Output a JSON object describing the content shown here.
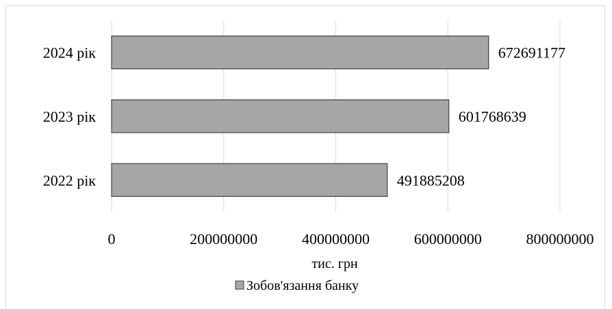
{
  "chart_data": {
    "type": "bar",
    "orientation": "horizontal",
    "categories": [
      "2022 рік",
      "2023 рік",
      "2024 рік"
    ],
    "series": [
      {
        "name": "Зобов'язання банку",
        "values": [
          491885208,
          601768639,
          672691177
        ]
      }
    ],
    "data_labels": [
      "491885208",
      "601768639",
      "672691177"
    ],
    "xlabel": "тис. грн",
    "xlim": [
      0,
      800000000
    ],
    "x_ticks": [
      0,
      200000000,
      400000000,
      600000000,
      800000000
    ],
    "x_tick_labels": [
      "0",
      "200000000",
      "400000000",
      "600000000",
      "800000000"
    ],
    "grid": "vertical",
    "legend": "bottom",
    "colors": {
      "bar_fill": "#a6a6a6",
      "bar_stroke": "#404040",
      "grid": "#d9d9d9"
    }
  }
}
